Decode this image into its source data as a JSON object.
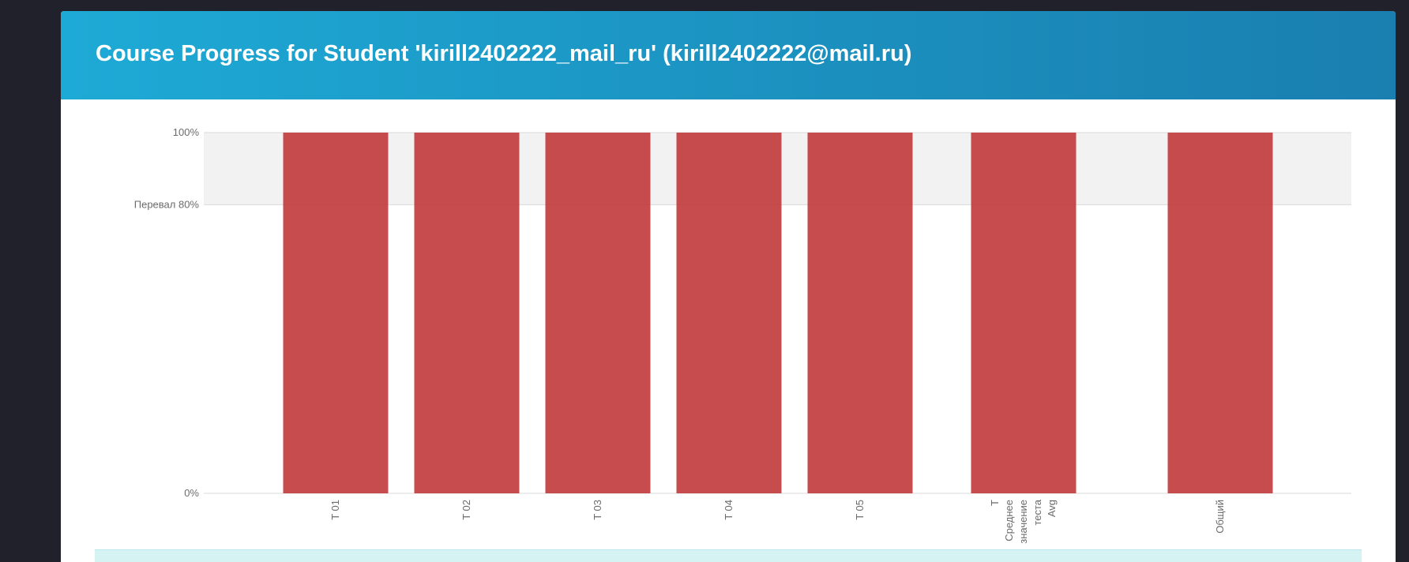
{
  "header": {
    "title": "Course Progress for Student 'kirill2402222_mail_ru' (kirill2402222@mail.ru)"
  },
  "colors": {
    "header_start": "#1eaad6",
    "header_end": "#1a7fb0",
    "bar": "#c0393b",
    "pass_band": "#f2f2f2",
    "background": "#20212b"
  },
  "chart_data": {
    "type": "bar",
    "categories": [
      [
        "T 01"
      ],
      [
        "T 02"
      ],
      [
        "T 03"
      ],
      [
        "T 04"
      ],
      [
        "T 05"
      ],
      [
        "T",
        "Среднее",
        "значение",
        "теста",
        "Avg"
      ],
      [
        "Общий"
      ]
    ],
    "values": [
      100,
      100,
      100,
      100,
      100,
      100,
      100
    ],
    "ylim": [
      0,
      100
    ],
    "y_ticks": [
      {
        "value": 100,
        "label": "100%"
      },
      {
        "value": 80,
        "label": "Перевал 80%"
      },
      {
        "value": 0,
        "label": "0%"
      }
    ],
    "pass_threshold": 80,
    "grid": false,
    "title": "",
    "xlabel": "",
    "ylabel": ""
  },
  "info": {
    "text": ""
  }
}
